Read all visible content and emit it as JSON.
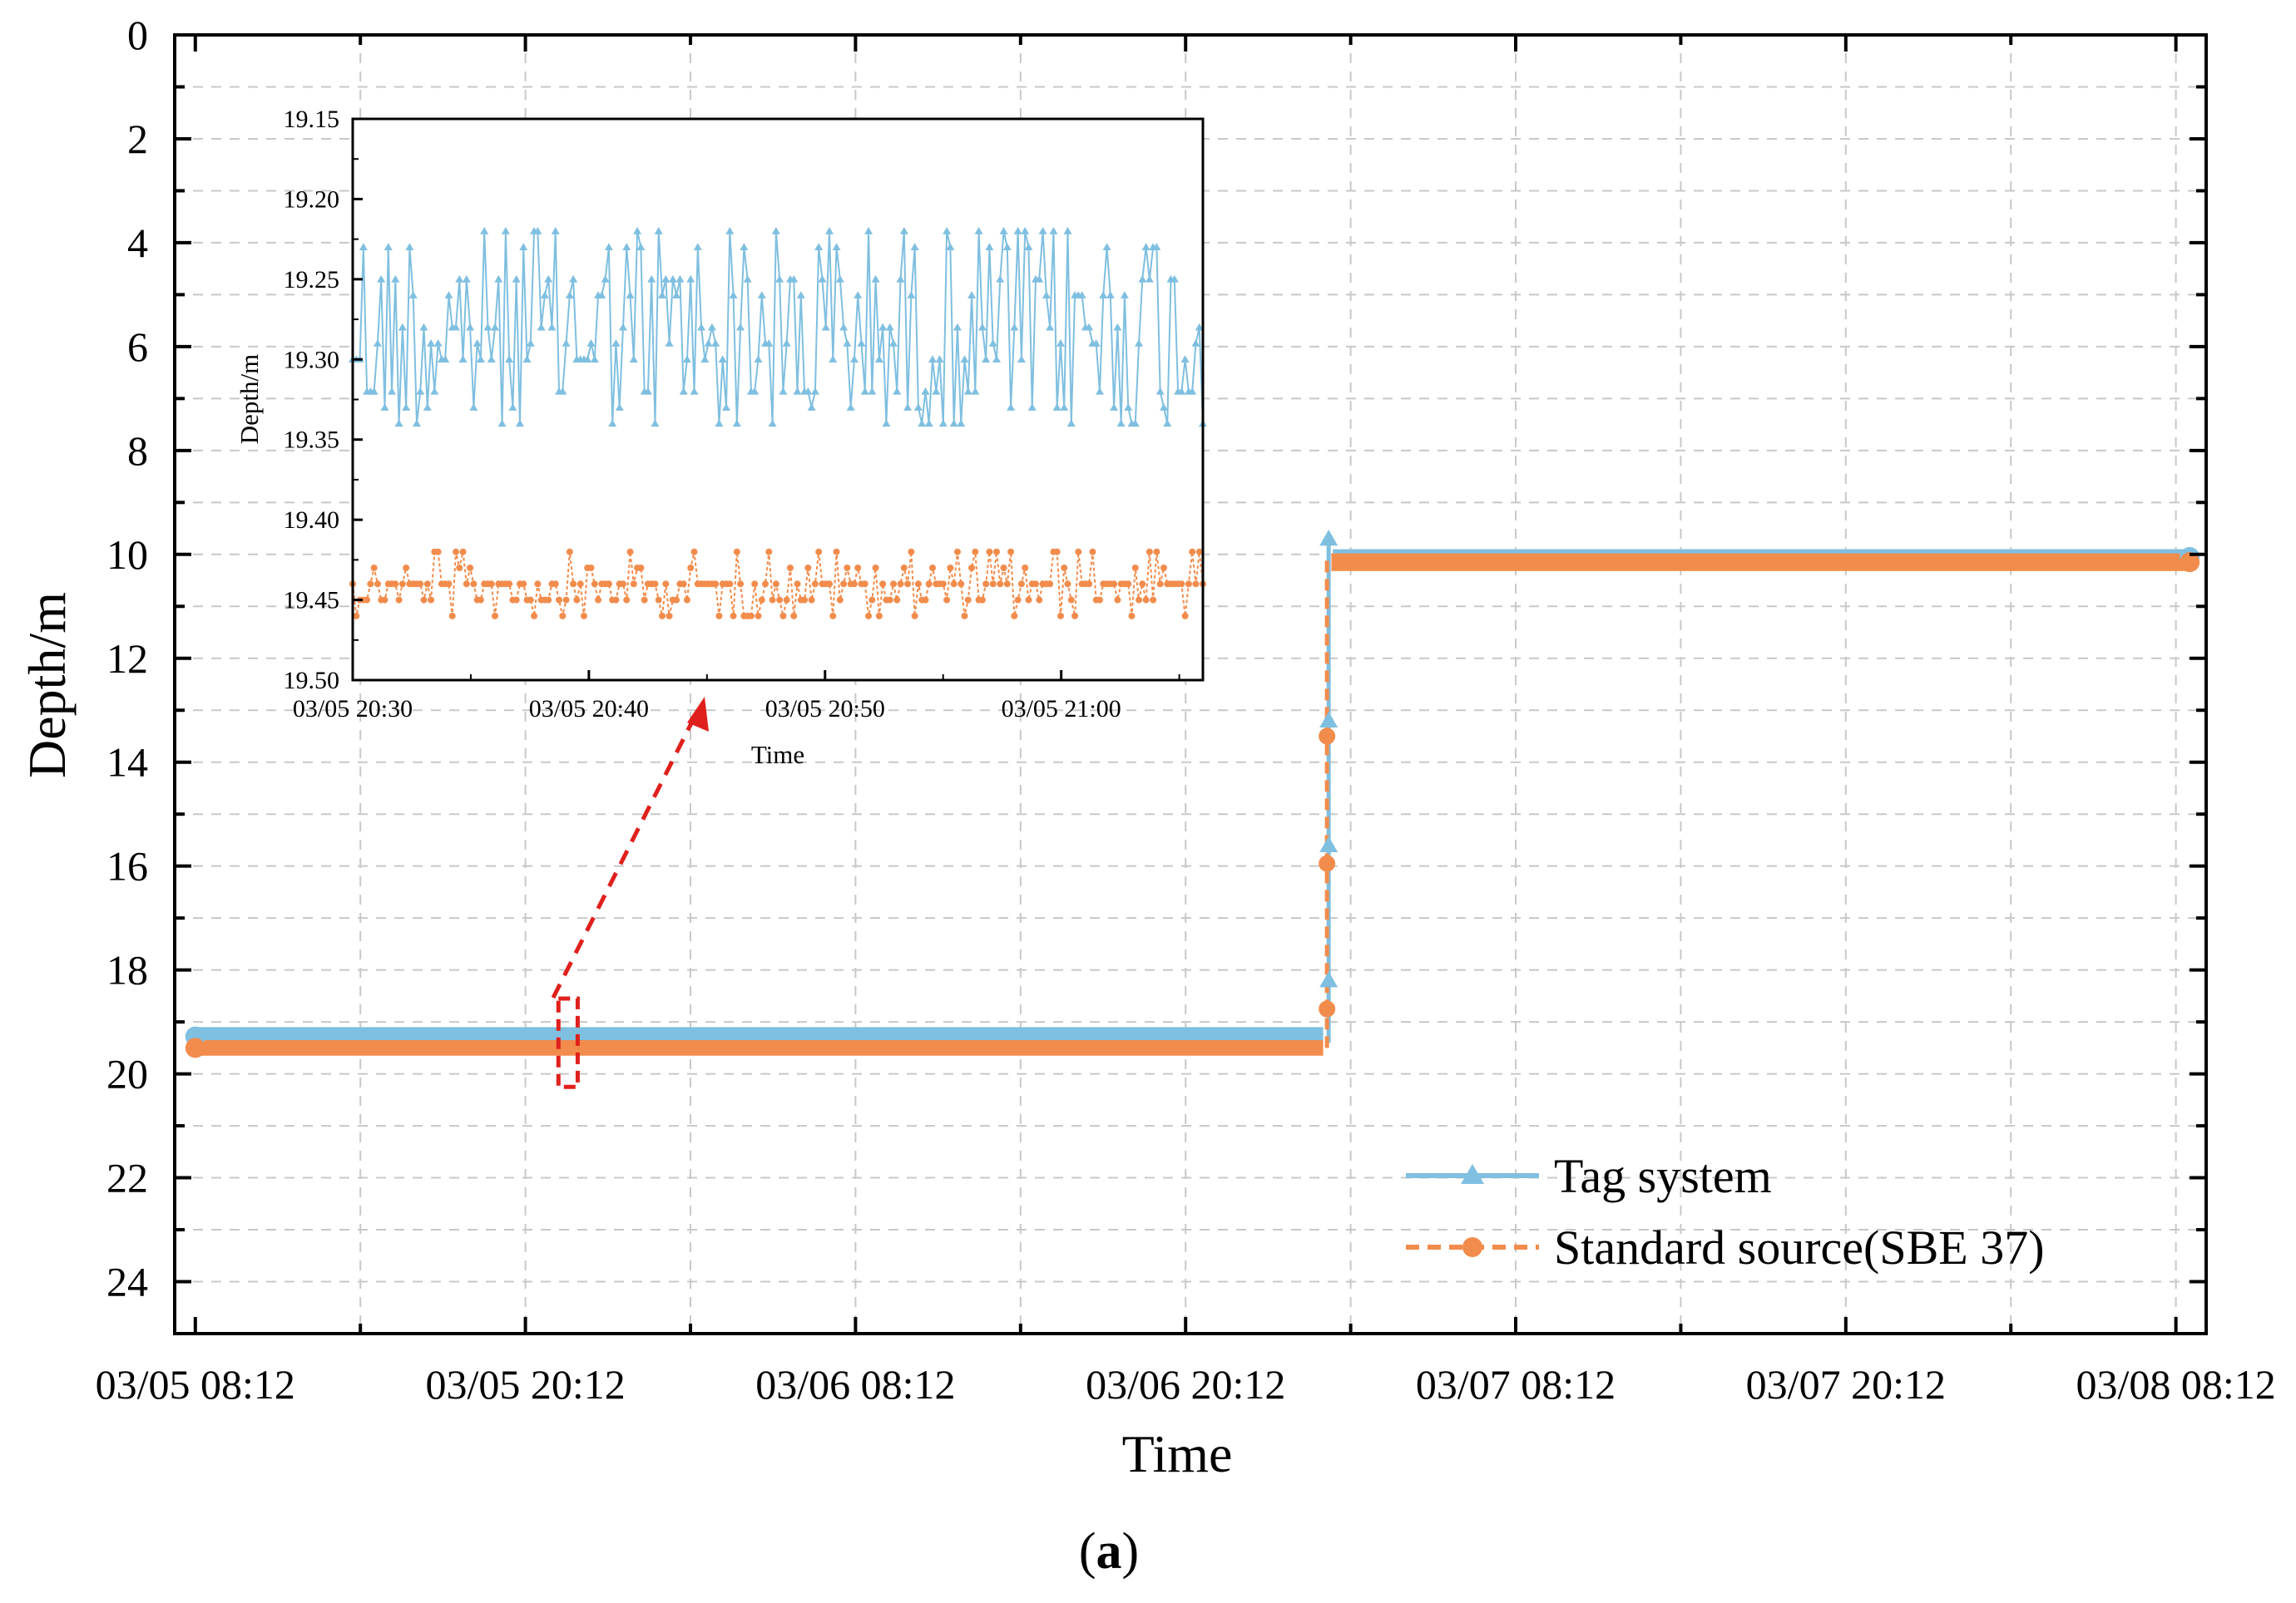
{
  "chart_data": [
    {
      "type": "line",
      "title": "",
      "xlabel": "Time",
      "ylabel": "Depth/m",
      "x_ticks": [
        "03/05 08:12",
        "03/05 20:12",
        "03/06 08:12",
        "03/06 20:12",
        "03/07 08:12",
        "03/07 20:12",
        "03/08 08:12"
      ],
      "x_range_hours": [
        -0.75,
        73.1
      ],
      "y_ticks": [
        "0",
        "2",
        "4",
        "6",
        "8",
        "10",
        "12",
        "14",
        "16",
        "18",
        "20",
        "22",
        "24"
      ],
      "ylim": [
        0,
        25
      ],
      "y_inverted": true,
      "grid": true,
      "legend_position": "bottom-right",
      "series": [
        {
          "name": "Tag system",
          "color": "#7fbfe0",
          "marker": "triangle",
          "line_style": "solid",
          "points_hours_depth": [
            [
              0,
              19.3
            ],
            [
              41,
              19.3
            ],
            [
              41.1,
              18.2
            ],
            [
              41.15,
              15.6
            ],
            [
              41.2,
              13.2
            ],
            [
              41.3,
              9.7
            ],
            [
              41.35,
              10.05
            ],
            [
              72.5,
              10.05
            ]
          ]
        },
        {
          "name": "Standard source(SBE 37)",
          "color": "#f28c4c",
          "marker": "circle",
          "line_style": "dashed",
          "points_hours_depth": [
            [
              0,
              19.45
            ],
            [
              41,
              19.45
            ],
            [
              41.1,
              18.75
            ],
            [
              41.15,
              15.95
            ],
            [
              41.2,
              13.5
            ],
            [
              41.3,
              10.15
            ],
            [
              72.5,
              10.15
            ]
          ]
        }
      ],
      "zoom_region_hours": [
        13.2,
        13.9
      ],
      "zoom_region_depth": [
        18.55,
        20.25
      ]
    },
    {
      "type": "line",
      "title": "",
      "xlabel": "Time",
      "ylabel": "Depth/m",
      "x_ticks": [
        "03/05 20:30",
        "03/05 20:40",
        "03/05 20:50",
        "03/05 21:00"
      ],
      "x_range_minutes": [
        0,
        36
      ],
      "y_ticks": [
        "19.15",
        "19.20",
        "19.25",
        "19.30",
        "19.35",
        "19.40",
        "19.45",
        "19.50"
      ],
      "ylim": [
        19.15,
        19.5
      ],
      "y_inverted": true,
      "grid": false,
      "series": [
        {
          "name": "Tag system",
          "color": "#7fbfe0",
          "marker": "triangle",
          "depth_range": [
            19.22,
            19.34
          ],
          "approx_points": 240
        },
        {
          "name": "Standard source(SBE 37)",
          "color": "#f28c4c",
          "marker": "circle",
          "depth_range": [
            19.42,
            19.46
          ],
          "approx_points": 240
        }
      ]
    }
  ],
  "caption": "(a)",
  "caption_letter": "a"
}
